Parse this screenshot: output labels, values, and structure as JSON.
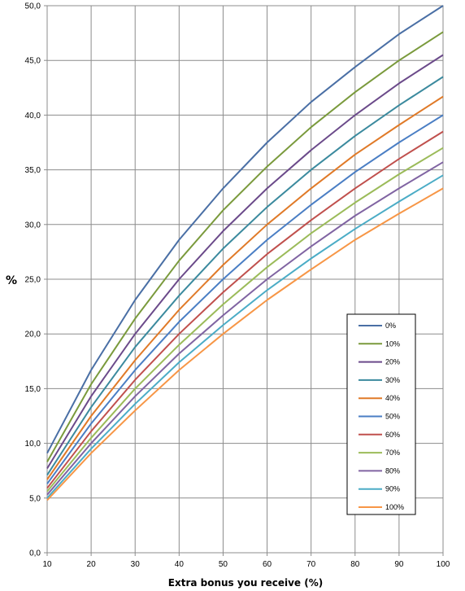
{
  "chart_data": {
    "type": "line",
    "title": "",
    "xlabel": "Extra bonus you receive (%)",
    "ylabel": "%",
    "x": [
      10,
      20,
      30,
      40,
      50,
      60,
      70,
      80,
      90,
      100
    ],
    "xlim": [
      10,
      100
    ],
    "ylim": [
      0,
      50
    ],
    "xticks": [
      "10",
      "20",
      "30",
      "40",
      "50",
      "60",
      "70",
      "80",
      "90",
      "100"
    ],
    "yticks": [
      "0,0",
      "5,0",
      "10,0",
      "15,0",
      "20,0",
      "25,0",
      "30,0",
      "35,0",
      "40,0",
      "45,0",
      "50,0"
    ],
    "grid": true,
    "legend_position": "right",
    "series": [
      {
        "name": "0%",
        "color": "#4a6fa5",
        "values": [
          9.1,
          16.7,
          23.1,
          28.6,
          33.3,
          37.5,
          41.2,
          44.4,
          47.4,
          50.0
        ]
      },
      {
        "name": "10%",
        "color": "#7a9a3c",
        "values": [
          8.3,
          15.4,
          21.4,
          26.7,
          31.3,
          35.3,
          38.9,
          42.1,
          45.0,
          47.6
        ]
      },
      {
        "name": "20%",
        "color": "#6b4a8a",
        "values": [
          7.7,
          14.3,
          20.0,
          25.0,
          29.4,
          33.3,
          36.8,
          40.0,
          42.9,
          45.5
        ]
      },
      {
        "name": "30%",
        "color": "#3b8a9e",
        "values": [
          7.1,
          13.3,
          18.8,
          23.5,
          27.8,
          31.6,
          35.0,
          38.1,
          40.9,
          43.5
        ]
      },
      {
        "name": "40%",
        "color": "#e07a28",
        "values": [
          6.7,
          12.5,
          17.6,
          22.2,
          26.3,
          30.0,
          33.3,
          36.4,
          39.1,
          41.7
        ]
      },
      {
        "name": "50%",
        "color": "#4a7ec4",
        "values": [
          6.3,
          11.8,
          16.7,
          21.1,
          25.0,
          28.6,
          31.8,
          34.8,
          37.5,
          40.0
        ]
      },
      {
        "name": "60%",
        "color": "#c0504d",
        "values": [
          5.9,
          11.1,
          15.8,
          20.0,
          23.8,
          27.3,
          30.4,
          33.3,
          36.0,
          38.5
        ]
      },
      {
        "name": "70%",
        "color": "#9bbb59",
        "values": [
          5.6,
          10.5,
          15.0,
          19.0,
          22.7,
          26.1,
          29.2,
          32.0,
          34.6,
          37.0
        ]
      },
      {
        "name": "80%",
        "color": "#8064a2",
        "values": [
          5.3,
          10.0,
          14.3,
          18.2,
          21.7,
          25.0,
          28.0,
          30.8,
          33.3,
          35.7
        ]
      },
      {
        "name": "90%",
        "color": "#4bacc6",
        "values": [
          5.0,
          9.5,
          13.6,
          17.4,
          20.8,
          24.0,
          26.9,
          29.6,
          32.1,
          34.5
        ]
      },
      {
        "name": "100%",
        "color": "#f79646",
        "values": [
          4.8,
          9.1,
          13.0,
          16.7,
          20.0,
          23.1,
          25.9,
          28.6,
          31.0,
          33.3
        ]
      }
    ]
  }
}
